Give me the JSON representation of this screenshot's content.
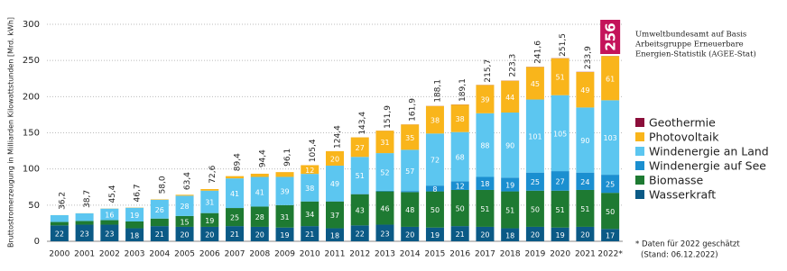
{
  "chart_data": {
    "type": "stacked-bar",
    "y_label": "Bruttostromerzeugung in Milliarden Kilowattstunden [Mrd. kWh]",
    "source": [
      "Umweltbundesamt auf Basis",
      "Arbeitsgruppe Erneuerbare",
      "Energien-Statistik (AGEE-Stat)"
    ],
    "footnote": [
      "* Daten für 2022 geschätzt",
      "(Stand: 06.12.2022)"
    ],
    "categories": [
      "2000",
      "2001",
      "2002",
      "2003",
      "2004",
      "2005",
      "2006",
      "2007",
      "2008",
      "2009",
      "2010",
      "2011",
      "2012",
      "2013",
      "2014",
      "2015",
      "2016",
      "2017",
      "2018",
      "2019",
      "2020",
      "2021",
      "2022*"
    ],
    "ylim": [
      0,
      300
    ],
    "yticks": [
      0,
      50,
      100,
      150,
      200,
      250,
      300
    ],
    "grid": true,
    "totals": [
      36.2,
      38.7,
      45.4,
      46.7,
      58.0,
      63.4,
      72.6,
      89.4,
      94.4,
      96.1,
      105.4,
      124.4,
      143.4,
      151.9,
      161.9,
      188.1,
      189.1,
      215.7,
      223.3,
      241.6,
      251.5,
      233.9,
      256
    ],
    "total_labels": [
      "36,2",
      "38,7",
      "45,4",
      "46,7",
      "58,0",
      "63,4",
      "72,6",
      "89,4",
      "94,4",
      "96,1",
      "105,4",
      "124,4",
      "143,4",
      "151,9",
      "161,9",
      "188,1",
      "189,1",
      "215,7",
      "223,3",
      "241,6",
      "251,5",
      "233,9",
      "256"
    ],
    "series": [
      {
        "name": "Wasserkraft",
        "color": "#0b5a86",
        "values": [
          22,
          23,
          23,
          18,
          21,
          20,
          20,
          21,
          20,
          19,
          21,
          18,
          22,
          23,
          20,
          19,
          21,
          20,
          18,
          20,
          19,
          20,
          17
        ],
        "value_labels": [
          "22",
          "23",
          "23",
          "18",
          "21",
          "20",
          "20",
          "21",
          "20",
          "19",
          "21",
          "18",
          "22",
          "23",
          "20",
          "19",
          "21",
          "20",
          "18",
          "20",
          "19",
          "20",
          "17"
        ]
      },
      {
        "name": "Biomasse",
        "color": "#1e7a32",
        "values": [
          4.7,
          5.1,
          6.2,
          9.4,
          10.4,
          15,
          19,
          25,
          28,
          31,
          34,
          37,
          43,
          46,
          48,
          50,
          50,
          51,
          51,
          50,
          51,
          51,
          50
        ],
        "value_labels": [
          null,
          null,
          null,
          null,
          null,
          "15",
          "19",
          "25",
          "28",
          "31",
          "34",
          "37",
          "43",
          "46",
          "48",
          "50",
          "50",
          "51",
          "51",
          "50",
          "51",
          "51",
          "50"
        ]
      },
      {
        "name": "Windenergie auf See",
        "color": "#1b8fd0",
        "values": [
          0,
          0,
          0,
          0,
          0,
          0,
          0,
          0,
          0,
          0.04,
          0.2,
          0.6,
          0.7,
          0.9,
          1.5,
          8,
          12,
          18,
          19,
          25,
          27,
          24,
          25
        ],
        "value_labels": [
          null,
          null,
          null,
          null,
          null,
          null,
          null,
          null,
          null,
          null,
          null,
          null,
          null,
          null,
          null,
          "8",
          "12",
          "18",
          "19",
          "25",
          "27",
          "24",
          "25"
        ]
      },
      {
        "name": "Windenergie an Land",
        "color": "#5cc6f0",
        "values": [
          9.4,
          10.5,
          16,
          19,
          26,
          28,
          31,
          41,
          41,
          39,
          38,
          49,
          51,
          52,
          57,
          72,
          68,
          88,
          90,
          101,
          105,
          90,
          103
        ],
        "value_labels": [
          null,
          null,
          "16",
          "19",
          "26",
          "28",
          "31",
          "41",
          "41",
          "39",
          "38",
          "49",
          "51",
          "52",
          "57",
          "72",
          "68",
          "88",
          "90",
          "101",
          "105",
          "90",
          "103"
        ]
      },
      {
        "name": "Photovoltaik",
        "color": "#f9b51b",
        "values": [
          0.06,
          0.1,
          0.2,
          0.3,
          0.6,
          1.3,
          2.2,
          3.1,
          4.4,
          6.6,
          12,
          20,
          27,
          31,
          35,
          38,
          38,
          39,
          44,
          45,
          51,
          49,
          61
        ],
        "value_labels": [
          null,
          null,
          null,
          null,
          null,
          null,
          null,
          null,
          null,
          null,
          "12",
          "20",
          "27",
          "31",
          "35",
          "38",
          "38",
          "39",
          "44",
          "45",
          "51",
          "49",
          "61"
        ]
      },
      {
        "name": "Geothermie",
        "color": "#8b0e3a",
        "values": [
          0,
          0,
          0,
          0,
          0,
          0,
          0,
          0,
          0.02,
          0.02,
          0.03,
          0.02,
          0.03,
          0.08,
          0.1,
          0.13,
          0.18,
          0.16,
          0.18,
          0.2,
          0.23,
          0.25,
          0.2
        ],
        "value_labels": [
          null,
          null,
          null,
          null,
          null,
          null,
          null,
          null,
          null,
          null,
          null,
          null,
          null,
          null,
          null,
          null,
          null,
          null,
          null,
          null,
          null,
          null,
          null
        ]
      }
    ]
  }
}
